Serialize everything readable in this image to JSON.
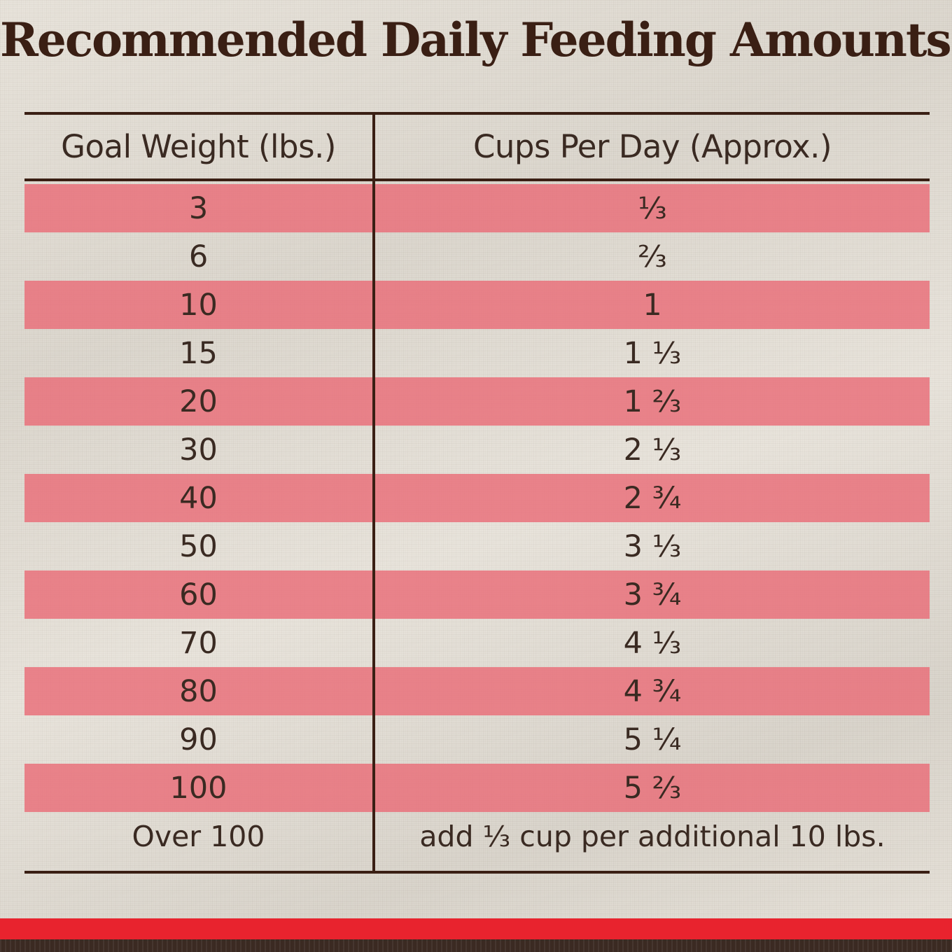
{
  "title": "Recommended Daily Feeding Amounts:",
  "table": {
    "headers": {
      "weight": "Goal Weight (lbs.)",
      "cups": "Cups Per Day (Approx.)"
    },
    "rows": [
      {
        "weight": "3",
        "cups": "⅓"
      },
      {
        "weight": "6",
        "cups": "⅔"
      },
      {
        "weight": "10",
        "cups": "1"
      },
      {
        "weight": "15",
        "cups": "1 ⅓"
      },
      {
        "weight": "20",
        "cups": "1 ⅔"
      },
      {
        "weight": "30",
        "cups": "2 ⅓"
      },
      {
        "weight": "40",
        "cups": "2 ¾"
      },
      {
        "weight": "50",
        "cups": "3 ⅓"
      },
      {
        "weight": "60",
        "cups": "3 ¾"
      },
      {
        "weight": "70",
        "cups": "4 ⅓"
      },
      {
        "weight": "80",
        "cups": "4 ¾"
      },
      {
        "weight": "90",
        "cups": "5 ¼"
      },
      {
        "weight": "100",
        "cups": "5 ⅔"
      },
      {
        "weight": "Over 100",
        "cups": "add ⅓ cup per additional 10 lbs."
      }
    ]
  },
  "colors": {
    "stripe": "#e96c78",
    "text_dark": "#3a1f14",
    "footer_red": "#e8232e",
    "footer_dark": "#3b2a22",
    "background": "#e6e1d8"
  }
}
